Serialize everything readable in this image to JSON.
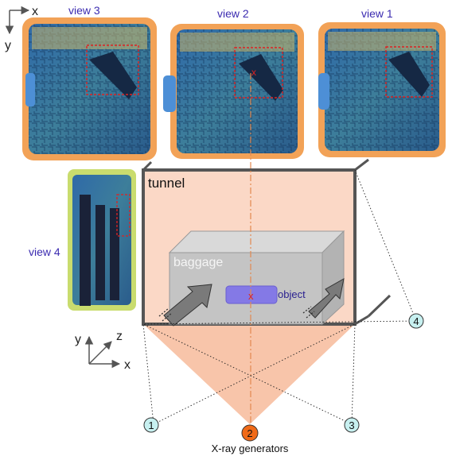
{
  "axes_top": {
    "x": "x",
    "y": "y"
  },
  "views": {
    "view3": "view 3",
    "view2": "view 2",
    "view1": "view 1",
    "view4": "view 4"
  },
  "labels": {
    "tunnel": "tunnel",
    "baggage": "baggage",
    "object": "object",
    "object_mark": "x",
    "generators": "X-ray generators"
  },
  "axes_bottom": {
    "x": "x",
    "y": "y",
    "z": "z"
  },
  "generators": [
    "1",
    "2",
    "3",
    "4"
  ],
  "colors": {
    "beam": "#f8c5aa",
    "baggage": "#c4c4c4",
    "object": "#8479e6",
    "view_label": "#3b2bb0",
    "gen_normal": "#c7f0f0",
    "gen_active": "#f06a18",
    "roi": "#dd2222"
  }
}
